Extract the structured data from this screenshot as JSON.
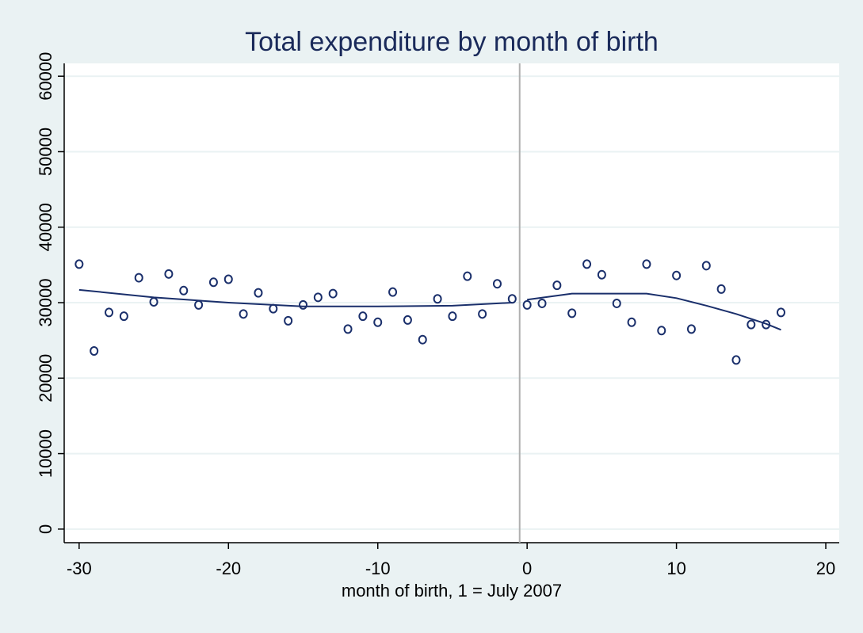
{
  "chart_data": {
    "type": "scatter",
    "title": "Total expenditure by month of birth",
    "x_label": "month of birth, 1 = July 2007",
    "x": [
      -30,
      -29,
      -28,
      -27,
      -26,
      -25,
      -24,
      -23,
      -22,
      -21,
      -20,
      -19,
      -18,
      -17,
      -16,
      -15,
      -14,
      -13,
      -12,
      -11,
      -10,
      -9,
      -8,
      -7,
      -6,
      -5,
      -4,
      -3,
      -2,
      -1,
      0,
      1,
      2,
      3,
      4,
      5,
      6,
      7,
      8,
      9,
      10,
      11,
      12,
      13,
      14,
      15,
      16,
      17
    ],
    "values": [
      35100,
      23600,
      28700,
      28200,
      33300,
      30100,
      33800,
      31600,
      29700,
      32700,
      33100,
      28500,
      31300,
      29200,
      27600,
      29700,
      30700,
      31200,
      26500,
      28200,
      27400,
      31400,
      27700,
      25100,
      30500,
      28200,
      33500,
      28500,
      32500,
      30500,
      29700,
      29900,
      32300,
      28600,
      35100,
      33700,
      29900,
      27400,
      35100,
      26300,
      33600,
      26500,
      34900,
      31800,
      22400,
      27100,
      27100,
      28700
    ],
    "color": "#1a2f6b",
    "fits": [
      {
        "x": [
          -30,
          -25,
          -20,
          -15,
          -10,
          -5,
          -1
        ],
        "values": [
          31700,
          30700,
          30000,
          29500,
          29500,
          29600,
          30000
        ]
      },
      {
        "x": [
          0,
          3,
          8,
          10,
          12,
          14,
          16,
          17
        ],
        "values": [
          30400,
          31200,
          31200,
          30600,
          29600,
          28500,
          27200,
          26400
        ]
      }
    ],
    "xline": -0.5,
    "xlim": [
      -31,
      20.9
    ],
    "xticks": [
      -30,
      -20,
      -10,
      0,
      10,
      20
    ],
    "ylim": [
      -1800,
      61700
    ],
    "yticks": [
      0,
      10000,
      20000,
      30000,
      40000,
      50000,
      60000
    ],
    "grid": true
  }
}
